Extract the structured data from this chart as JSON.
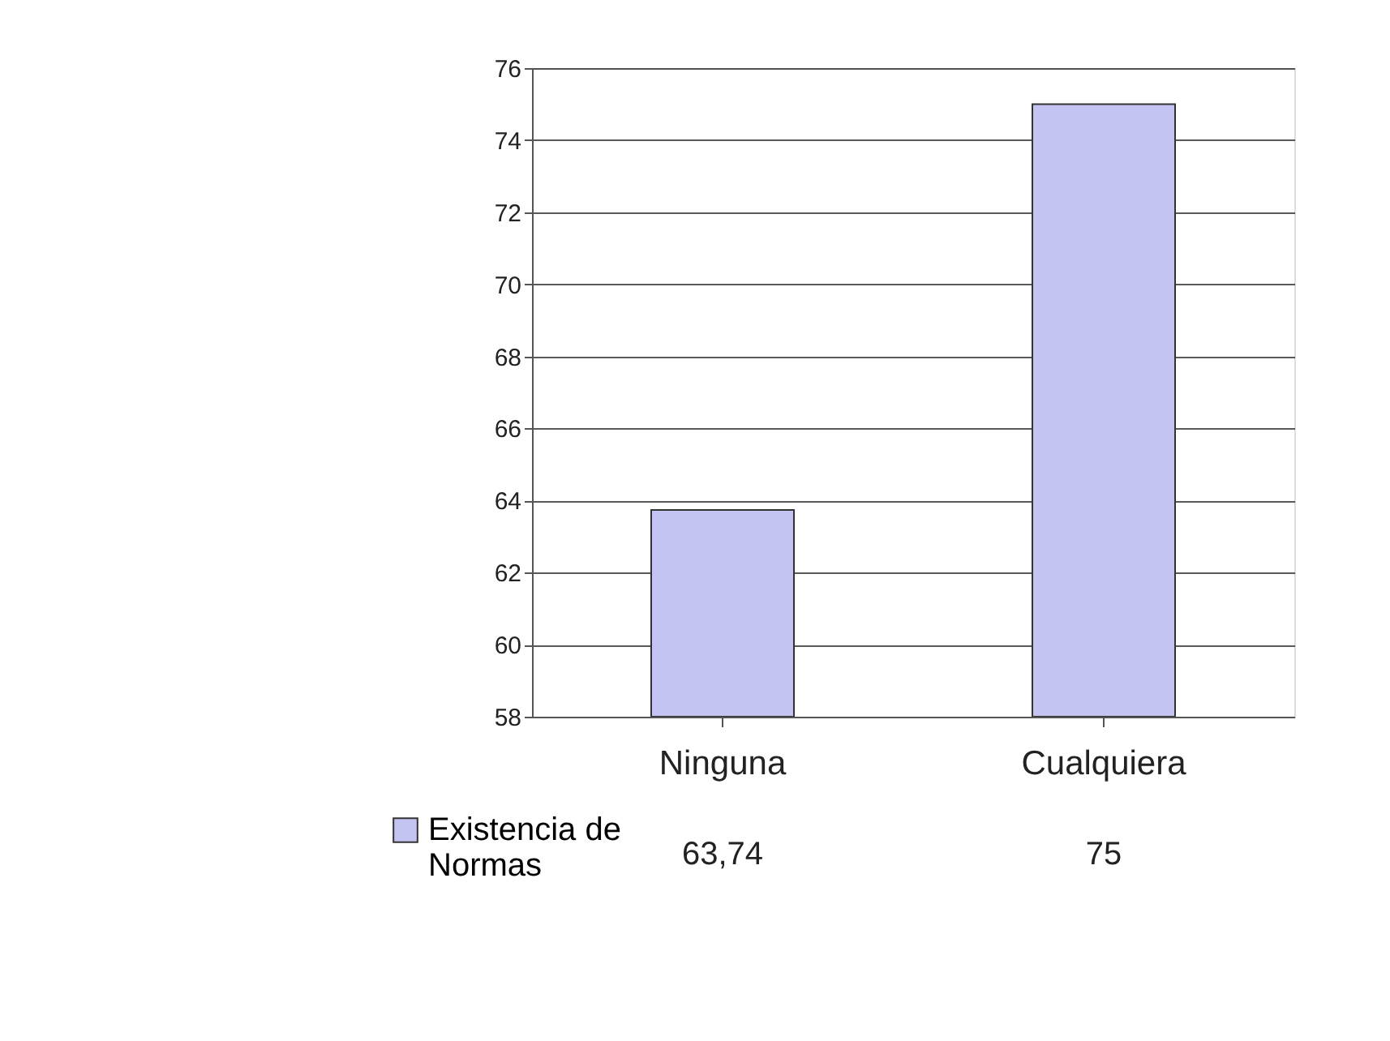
{
  "chart_data": {
    "type": "bar",
    "categories": [
      "Ninguna",
      "Cualquiera"
    ],
    "series": [
      {
        "name": "Existencia de Normas",
        "color": "#c4c4f2",
        "values": [
          63.74,
          75
        ],
        "value_labels": [
          "63,74",
          "75"
        ]
      }
    ],
    "ylim": [
      58,
      76
    ],
    "yticks": [
      58,
      60,
      62,
      64,
      66,
      68,
      70,
      72,
      74,
      76
    ],
    "grid": "y",
    "legend": "bottom left"
  }
}
